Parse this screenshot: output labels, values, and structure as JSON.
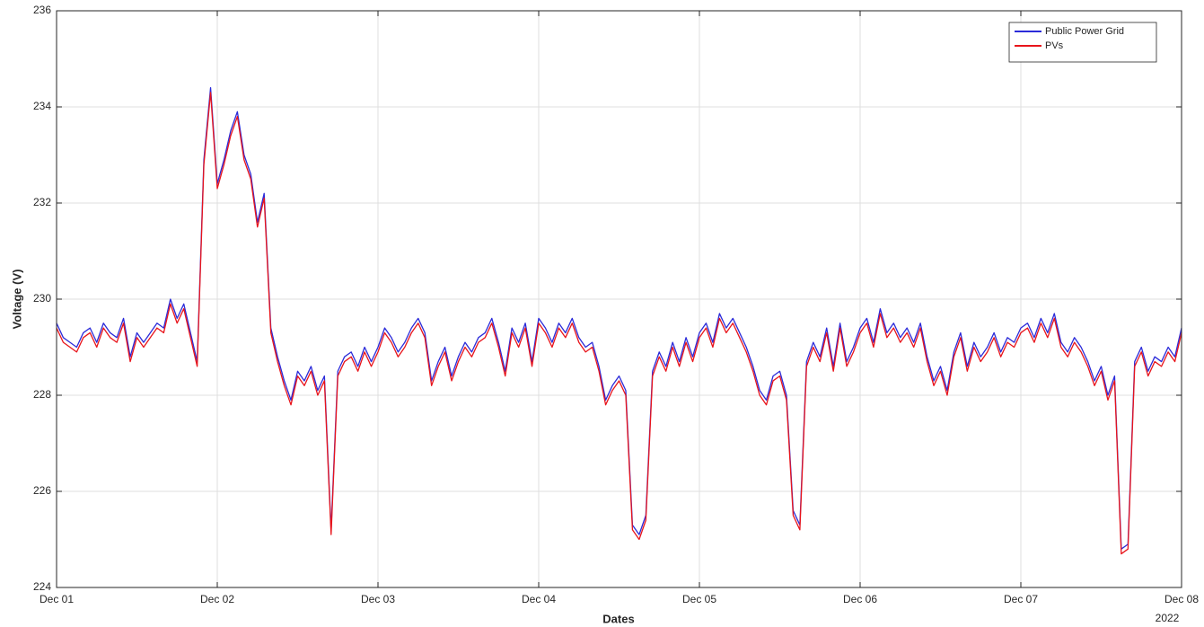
{
  "chart_data": {
    "type": "line",
    "xlabel": "Dates",
    "ylabel": "Voltage (V)",
    "x_annotation": "2022",
    "x": [
      0,
      1,
      2,
      3,
      4,
      5,
      6,
      7,
      8,
      9,
      10,
      11,
      12,
      13,
      14,
      15,
      16,
      17,
      18,
      19,
      20,
      21,
      22,
      23,
      24,
      25,
      26,
      27,
      28,
      29,
      30,
      31,
      32,
      33,
      34,
      35,
      36,
      37,
      38,
      39,
      40,
      41,
      42,
      43,
      44,
      45,
      46,
      47,
      48,
      49,
      50,
      51,
      52,
      53,
      54,
      55,
      56,
      57,
      58,
      59,
      60,
      61,
      62,
      63,
      64,
      65,
      66,
      67,
      68,
      69,
      70,
      71,
      72,
      73,
      74,
      75,
      76,
      77,
      78,
      79,
      80,
      81,
      82,
      83,
      84,
      85,
      86,
      87,
      88,
      89,
      90,
      91,
      92,
      93,
      94,
      95,
      96,
      97,
      98,
      99,
      100,
      101,
      102,
      103,
      104,
      105,
      106,
      107,
      108,
      109,
      110,
      111,
      112,
      113,
      114,
      115,
      116,
      117,
      118,
      119,
      120,
      121,
      122,
      123,
      124,
      125,
      126,
      127,
      128,
      129,
      130,
      131,
      132,
      133,
      134,
      135,
      136,
      137,
      138,
      139,
      140,
      141,
      142,
      143,
      144,
      145,
      146,
      147,
      148,
      149,
      150,
      151,
      152,
      153,
      154,
      155,
      156,
      157,
      158,
      159,
      160,
      161,
      162,
      163,
      164,
      165,
      166,
      167,
      168
    ],
    "series": [
      {
        "name": "Public Power Grid",
        "color": "#2b2bd9",
        "values": [
          229.5,
          229.2,
          229.1,
          229.0,
          229.3,
          229.4,
          229.1,
          229.5,
          229.3,
          229.2,
          229.6,
          228.8,
          229.3,
          229.1,
          229.3,
          229.5,
          229.4,
          230.0,
          229.6,
          229.9,
          229.3,
          228.7,
          232.9,
          234.4,
          232.4,
          232.9,
          233.5,
          233.9,
          233.0,
          232.6,
          231.6,
          232.2,
          229.4,
          228.8,
          228.3,
          227.9,
          228.5,
          228.3,
          228.6,
          228.1,
          228.4,
          225.2,
          228.5,
          228.8,
          228.9,
          228.6,
          229.0,
          228.7,
          229.0,
          229.4,
          229.2,
          228.9,
          229.1,
          229.4,
          229.6,
          229.3,
          228.3,
          228.7,
          229.0,
          228.4,
          228.8,
          229.1,
          228.9,
          229.2,
          229.3,
          229.6,
          229.1,
          228.5,
          229.4,
          229.1,
          229.5,
          228.7,
          229.6,
          229.4,
          229.1,
          229.5,
          229.3,
          229.6,
          229.2,
          229.0,
          229.1,
          228.6,
          227.9,
          228.2,
          228.4,
          228.1,
          225.3,
          225.1,
          225.5,
          228.5,
          228.9,
          228.6,
          229.1,
          228.7,
          229.2,
          228.8,
          229.3,
          229.5,
          229.1,
          229.7,
          229.4,
          229.6,
          229.3,
          229.0,
          228.6,
          228.1,
          227.9,
          228.4,
          228.5,
          228.0,
          225.6,
          225.3,
          228.7,
          229.1,
          228.8,
          229.4,
          228.6,
          229.5,
          228.7,
          229.0,
          229.4,
          229.6,
          229.1,
          229.8,
          229.3,
          229.5,
          229.2,
          229.4,
          229.1,
          229.5,
          228.8,
          228.3,
          228.6,
          228.1,
          228.9,
          229.3,
          228.6,
          229.1,
          228.8,
          229.0,
          229.3,
          228.9,
          229.2,
          229.1,
          229.4,
          229.5,
          229.2,
          229.6,
          229.3,
          229.7,
          229.1,
          228.9,
          229.2,
          229.0,
          228.7,
          228.3,
          228.6,
          228.0,
          228.4,
          224.8,
          224.9,
          228.7,
          229.0,
          228.5,
          228.8,
          228.7,
          229.0,
          228.8,
          229.4
        ]
      },
      {
        "name": "PVs",
        "color": "#e8141b",
        "values": [
          229.4,
          229.1,
          229.0,
          228.9,
          229.2,
          229.3,
          229.0,
          229.4,
          229.2,
          229.1,
          229.5,
          228.7,
          229.2,
          229.0,
          229.2,
          229.4,
          229.3,
          229.9,
          229.5,
          229.8,
          229.2,
          228.6,
          232.8,
          234.3,
          232.3,
          232.8,
          233.4,
          233.8,
          232.9,
          232.5,
          231.5,
          232.1,
          229.3,
          228.7,
          228.2,
          227.8,
          228.4,
          228.2,
          228.5,
          228.0,
          228.3,
          225.1,
          228.4,
          228.7,
          228.8,
          228.5,
          228.9,
          228.6,
          228.9,
          229.3,
          229.1,
          228.8,
          229.0,
          229.3,
          229.5,
          229.2,
          228.2,
          228.6,
          228.9,
          228.3,
          228.7,
          229.0,
          228.8,
          229.1,
          229.2,
          229.5,
          229.0,
          228.4,
          229.3,
          229.0,
          229.4,
          228.6,
          229.5,
          229.3,
          229.0,
          229.4,
          229.2,
          229.5,
          229.1,
          228.9,
          229.0,
          228.5,
          227.8,
          228.1,
          228.3,
          228.0,
          225.2,
          225.0,
          225.4,
          228.4,
          228.8,
          228.5,
          229.0,
          228.6,
          229.1,
          228.7,
          229.2,
          229.4,
          229.0,
          229.6,
          229.3,
          229.5,
          229.2,
          228.9,
          228.5,
          228.0,
          227.8,
          228.3,
          228.4,
          227.9,
          225.5,
          225.2,
          228.6,
          229.0,
          228.7,
          229.3,
          228.5,
          229.4,
          228.6,
          228.9,
          229.3,
          229.5,
          229.0,
          229.7,
          229.2,
          229.4,
          229.1,
          229.3,
          229.0,
          229.4,
          228.7,
          228.2,
          228.5,
          228.0,
          228.8,
          229.2,
          228.5,
          229.0,
          228.7,
          228.9,
          229.2,
          228.8,
          229.1,
          229.0,
          229.3,
          229.4,
          229.1,
          229.5,
          229.2,
          229.6,
          229.0,
          228.8,
          229.1,
          228.9,
          228.6,
          228.2,
          228.5,
          227.9,
          228.3,
          224.7,
          224.8,
          228.6,
          228.9,
          228.4,
          228.7,
          228.6,
          228.9,
          228.7,
          229.3
        ]
      }
    ],
    "xlim": [
      0,
      168
    ],
    "xticks": [
      {
        "value": 0,
        "label": "Dec 01"
      },
      {
        "value": 24,
        "label": "Dec 02"
      },
      {
        "value": 48,
        "label": "Dec 03"
      },
      {
        "value": 72,
        "label": "Dec 04"
      },
      {
        "value": 96,
        "label": "Dec 05"
      },
      {
        "value": 120,
        "label": "Dec 06"
      },
      {
        "value": 144,
        "label": "Dec 07"
      },
      {
        "value": 168,
        "label": "Dec 08"
      }
    ],
    "ylim": [
      224,
      236
    ],
    "yticks": [
      224,
      226,
      228,
      230,
      232,
      234,
      236
    ],
    "grid": true,
    "legend": "upper right"
  }
}
